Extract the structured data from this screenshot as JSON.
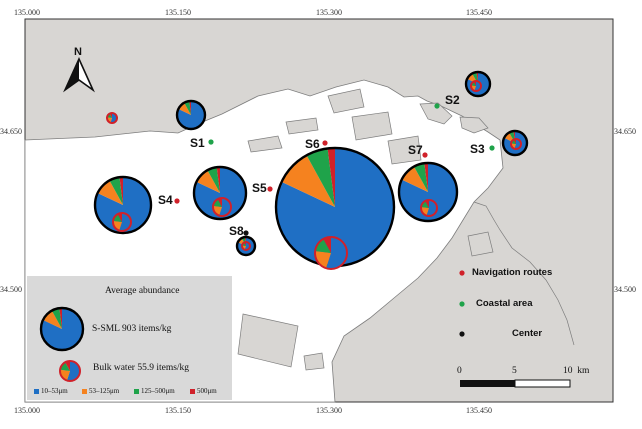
{
  "map": {
    "lon_ticks": [
      "135.000",
      "135.150",
      "135.300",
      "135.450"
    ],
    "lat_ticks_left": [
      "34.650",
      "34.500"
    ],
    "lat_ticks_right": [
      "34.650",
      "34.500"
    ],
    "north_label": "N",
    "colors": {
      "water": "#ffffff",
      "land": "#d8d6d3",
      "land_stroke": "#7d7d7d"
    }
  },
  "sites": [
    {
      "id": "S1",
      "label": "S1",
      "type": "coastal"
    },
    {
      "id": "S2",
      "label": "S2",
      "type": "coastal"
    },
    {
      "id": "S3",
      "label": "S3",
      "type": "coastal"
    },
    {
      "id": "S4",
      "label": "S4",
      "type": "navigation"
    },
    {
      "id": "S5",
      "label": "S5",
      "type": "navigation"
    },
    {
      "id": "S6",
      "label": "S6",
      "type": "navigation"
    },
    {
      "id": "S7",
      "label": "S7",
      "type": "navigation"
    },
    {
      "id": "S8",
      "label": "S8",
      "type": "center"
    }
  ],
  "legend": {
    "title": "Average abundance",
    "ssml_label": "S-SML 903 items/kg",
    "bulk_label": "Bulk water  55.9 items/kg",
    "size_classes": [
      {
        "label": "10–53μm",
        "color": "#1f6fc4"
      },
      {
        "label": "53–125μm",
        "color": "#f5821f"
      },
      {
        "label": "125–500μm",
        "color": "#1fa34a"
      },
      {
        "label": "500μm",
        "color": "#d0212a"
      }
    ],
    "site_types": [
      {
        "label": "Navigation routes",
        "color": "#d0212a"
      },
      {
        "label": "Coastal area",
        "color": "#1fa34a"
      },
      {
        "label": "Center",
        "color": "#111111"
      }
    ]
  },
  "scale_bar": {
    "labels": [
      "0",
      "5",
      "10  km"
    ]
  }
}
